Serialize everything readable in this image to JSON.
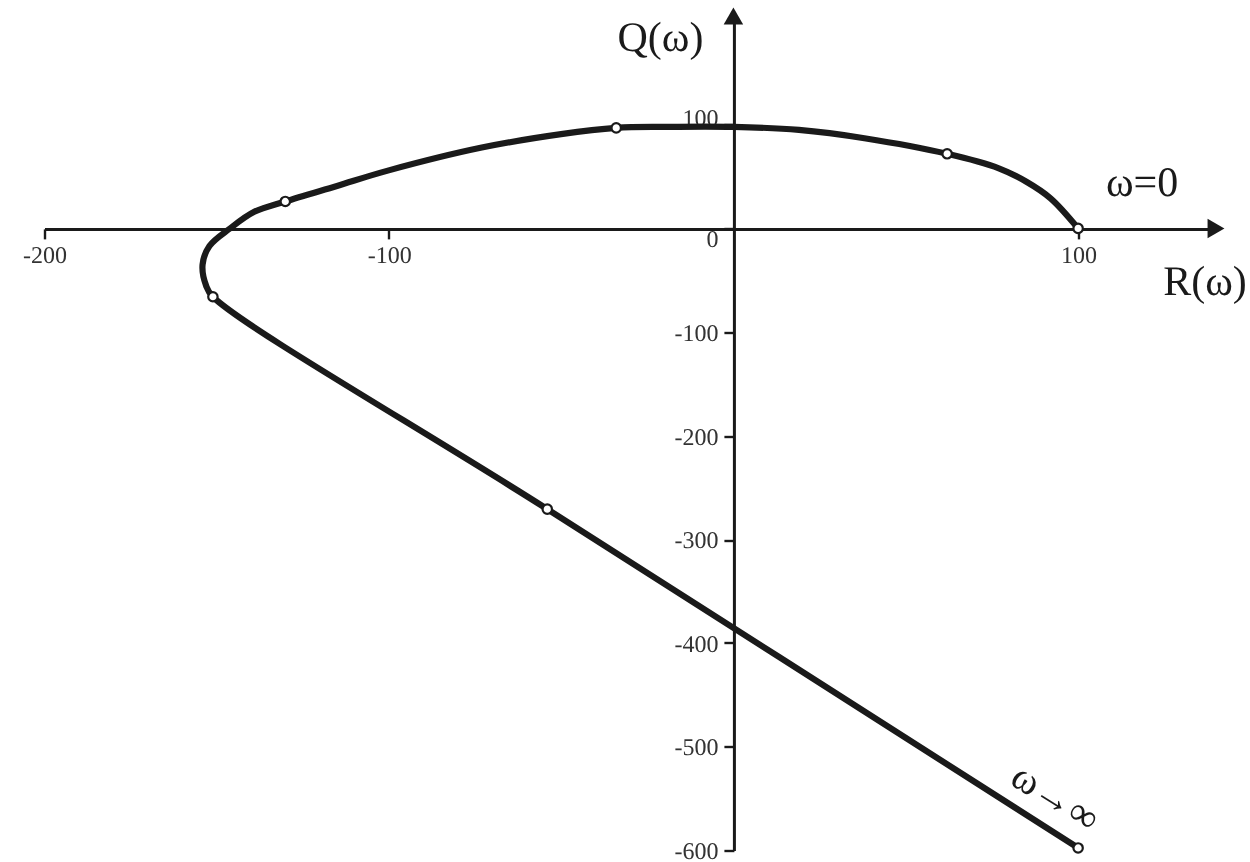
{
  "chart_data": {
    "type": "line",
    "xlabel": "R(ω)",
    "ylabel": "Q(ω)",
    "series": [
      {
        "type": "line",
        "color": "#1a1a1a",
        "x": [
          100,
          92,
          85,
          77,
          62,
          38,
          19,
          0,
          -20,
          -34,
          -50,
          -73,
          -100,
          -115,
          -130,
          -139,
          -146,
          -152,
          -154,
          -153,
          -151,
          -54,
          100
        ],
        "values": [
          0,
          29,
          45,
          58,
          72,
          87,
          95,
          98,
          98,
          97,
          91,
          78,
          56,
          41,
          26,
          16,
          0,
          -17,
          -35,
          -55,
          -66,
          -271,
          -598
        ]
      },
      {
        "type": "scatter",
        "color": "#ffffff",
        "marker": "circle",
        "x": [
          100,
          62,
          -34,
          -130,
          -151,
          -54,
          100
        ],
        "values": [
          0,
          72,
          97,
          26,
          -66,
          -271,
          -598
        ]
      }
    ],
    "xlim": [
      -200,
      140
    ],
    "ylim": [
      -600,
      205
    ],
    "xticks": [
      -200,
      -100,
      100
    ],
    "yticks": [
      -600,
      -500,
      -400,
      -300,
      -200,
      -100,
      0,
      100
    ],
    "annotations": [
      {
        "text": "ω=0",
        "x": 100,
        "y": 0
      },
      {
        "text": "ω→∞",
        "x": 100,
        "y": -598
      }
    ]
  }
}
